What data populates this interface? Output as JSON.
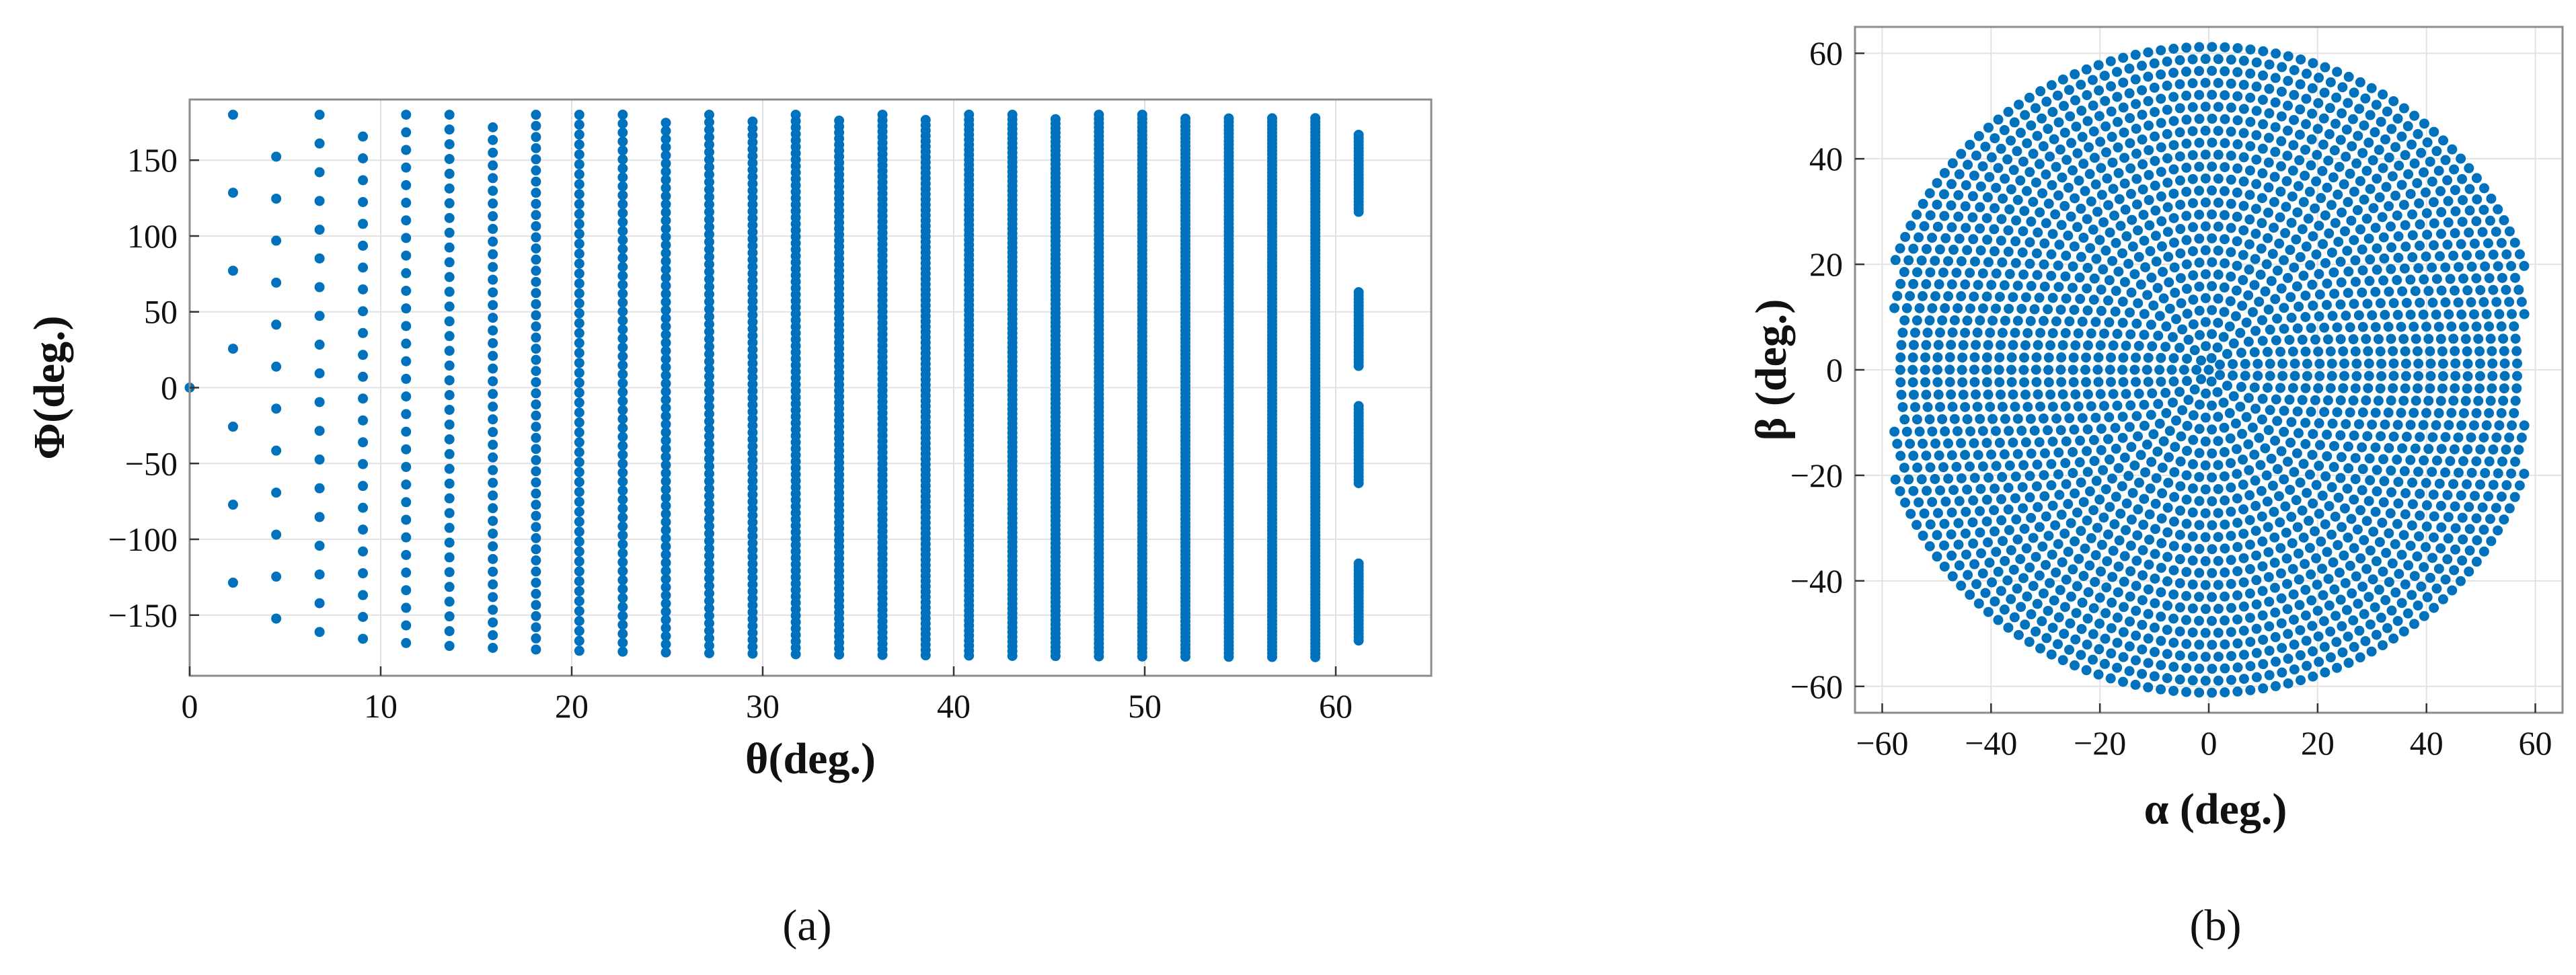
{
  "chart_data": [
    {
      "type": "scatter",
      "panel_label": "(a)",
      "title": "",
      "xlabel": "θ(deg.)",
      "ylabel": "Φ(deg.)",
      "xlim": [
        0,
        65
      ],
      "ylim": [
        -190,
        190
      ],
      "xticks": [
        0,
        10,
        20,
        30,
        40,
        50,
        60
      ],
      "yticks": [
        -150,
        -100,
        -50,
        0,
        50,
        100,
        150
      ],
      "grid": true,
      "color": "#0072BD",
      "points_description_source": "rings",
      "rings": [
        {
          "theta": 0,
          "count": 1,
          "phi_start": 0
        },
        {
          "theta": 2.27,
          "count": 7,
          "phi_start": -128.6
        },
        {
          "theta": 4.53,
          "count": 13,
          "phi_start": -152.3
        },
        {
          "theta": 6.8,
          "count": 19,
          "phi_start": -161.1
        },
        {
          "theta": 9.07,
          "count": 25,
          "phi_start": -165.6
        },
        {
          "theta": 11.33,
          "count": 31,
          "phi_start": -168.4
        },
        {
          "theta": 13.6,
          "count": 37,
          "phi_start": -170.3
        },
        {
          "theta": 15.87,
          "count": 43,
          "phi_start": -171.6
        },
        {
          "theta": 18.13,
          "count": 49,
          "phi_start": -172.7
        },
        {
          "theta": 20.4,
          "count": 55,
          "phi_start": -173.5
        },
        {
          "theta": 22.67,
          "count": 61,
          "phi_start": -174.1
        },
        {
          "theta": 24.93,
          "count": 67,
          "phi_start": -174.6
        },
        {
          "theta": 27.2,
          "count": 73,
          "phi_start": -175.1
        },
        {
          "theta": 29.47,
          "count": 79,
          "phi_start": -175.4
        },
        {
          "theta": 31.73,
          "count": 85,
          "phi_start": -175.8
        },
        {
          "theta": 34.0,
          "count": 91,
          "phi_start": -176.0
        },
        {
          "theta": 36.27,
          "count": 97,
          "phi_start": -176.3
        },
        {
          "theta": 38.53,
          "count": 103,
          "phi_start": -176.5
        },
        {
          "theta": 40.8,
          "count": 109,
          "phi_start": -176.7
        },
        {
          "theta": 43.07,
          "count": 115,
          "phi_start": -176.9
        },
        {
          "theta": 45.33,
          "count": 121,
          "phi_start": -177.0
        },
        {
          "theta": 47.6,
          "count": 127,
          "phi_start": -177.2
        },
        {
          "theta": 49.87,
          "count": 133,
          "phi_start": -177.3
        },
        {
          "theta": 52.13,
          "count": 139,
          "phi_start": -177.4
        },
        {
          "theta": 54.4,
          "count": 145,
          "phi_start": -177.5
        },
        {
          "theta": 56.67,
          "count": 151,
          "phi_start": -177.6
        },
        {
          "theta": 58.93,
          "count": 157,
          "phi_start": -177.7
        },
        {
          "theta": 61.2,
          "count": 163,
          "phi_start": -177.8,
          "phi_segments": [
            [
              -168,
              -114
            ],
            [
              -65,
              -12
            ],
            [
              13,
              64
            ],
            [
              114,
              168
            ]
          ]
        }
      ]
    },
    {
      "type": "scatter",
      "panel_label": "(b)",
      "title": "",
      "xlabel": "α (deg.)",
      "ylabel": "β (deg.)",
      "xlim": [
        -65,
        65
      ],
      "ylim": [
        -65,
        65
      ],
      "xticks": [
        -60,
        -40,
        -20,
        0,
        20,
        40,
        60
      ],
      "yticks": [
        -60,
        -40,
        -20,
        0,
        20,
        40,
        60
      ],
      "grid": true,
      "color": "#0072BD",
      "points_description_source": "same rings projected to (α, β); clipped where |α| > 58",
      "alpha_clip": 58
    }
  ]
}
